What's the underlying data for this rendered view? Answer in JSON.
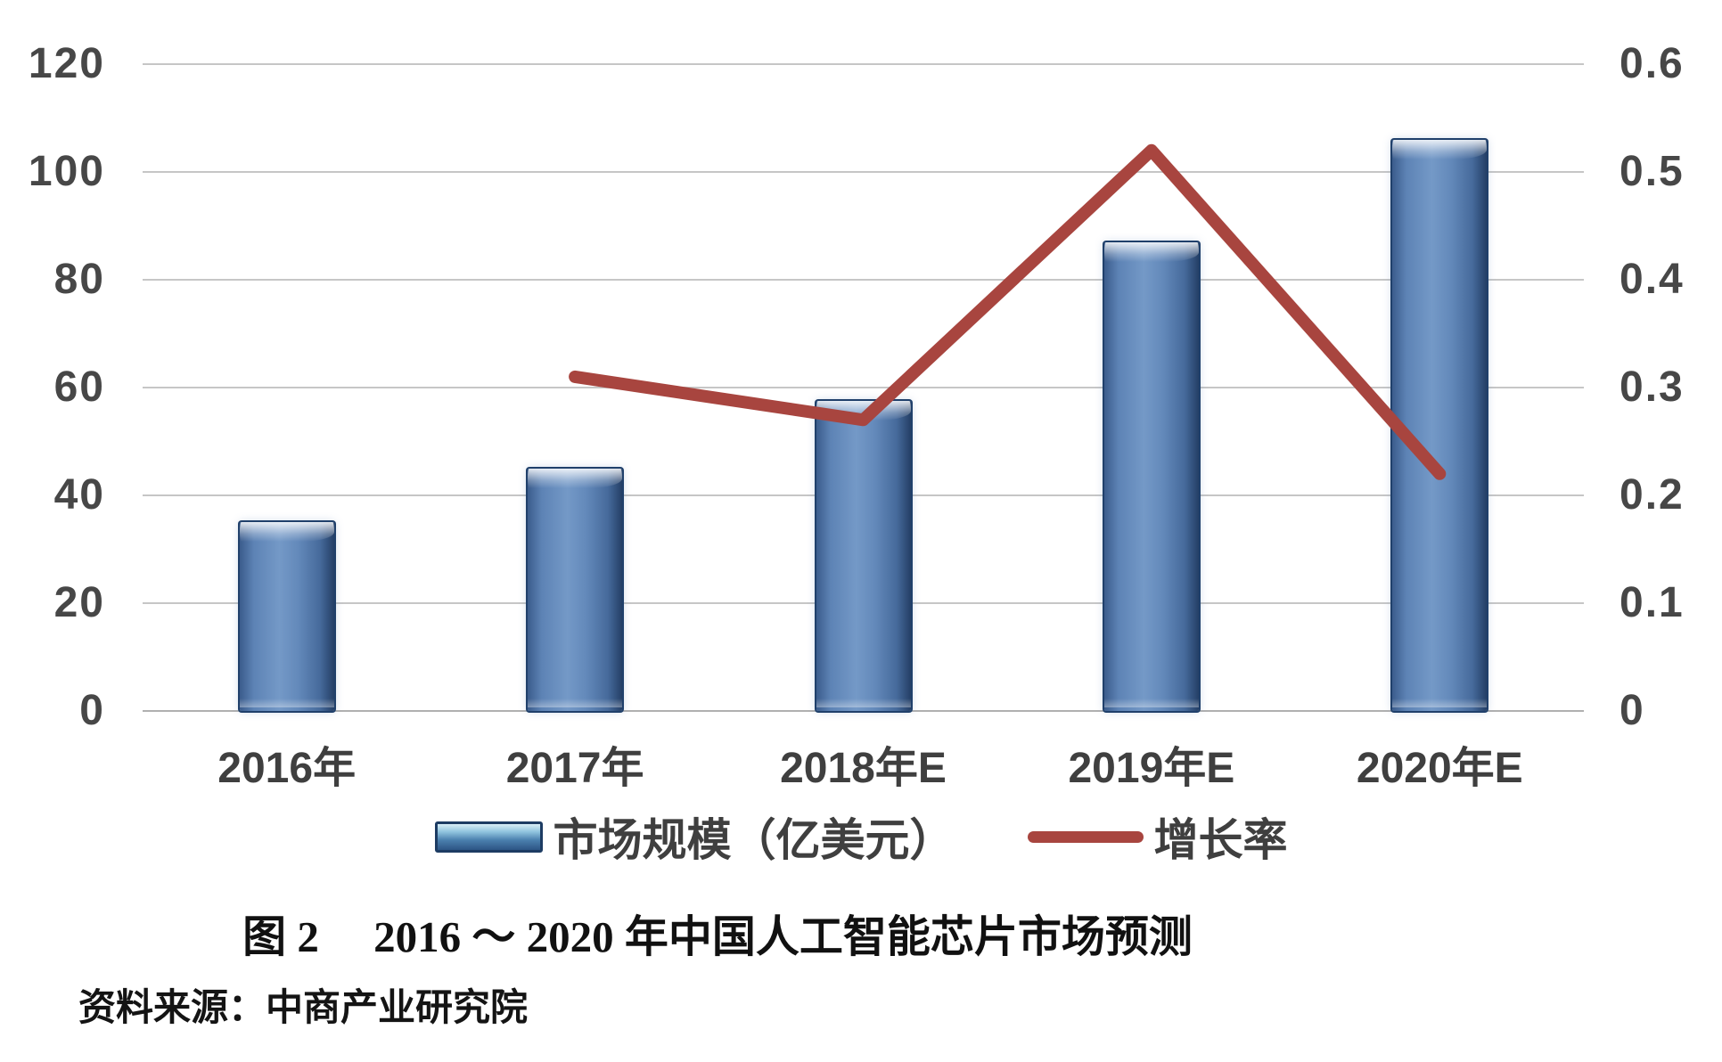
{
  "figure": {
    "caption": "图 2　 2016 ～ 2020 年中国人工智能芯片市场预测",
    "source": "资料来源：中商产业研究院"
  },
  "legend": {
    "items": [
      {
        "label": "市场规模（亿美元）",
        "swatch": "bar"
      },
      {
        "label": "增长率",
        "swatch": "line"
      }
    ]
  },
  "chart_data": {
    "type": "bar",
    "subtype": "bar+line combo, dual axis",
    "title": "",
    "categories": [
      "2016年",
      "2017年",
      "2018年E",
      "2019年E",
      "2020年E"
    ],
    "series": [
      {
        "name": "市场规模（亿美元）",
        "type": "bar",
        "axis": "left",
        "values": [
          35,
          45,
          57.5,
          87,
          106
        ]
      },
      {
        "name": "增长率",
        "type": "line",
        "axis": "right",
        "values": [
          null,
          0.31,
          0.27,
          0.52,
          0.22
        ]
      }
    ],
    "left_axis": {
      "min": 0,
      "max": 120,
      "step": 20,
      "ticks": [
        "0",
        "20",
        "40",
        "60",
        "80",
        "100",
        "120"
      ]
    },
    "right_axis": {
      "min": 0,
      "max": 0.6,
      "step": 0.1,
      "ticks": [
        "0",
        "0.1",
        "0.2",
        "0.3",
        "0.4",
        "0.5",
        "0.6"
      ]
    },
    "grid": true,
    "legend_position": "bottom",
    "colors": {
      "bar": "#5d83b5",
      "bar_edge": "#20406b",
      "line": "#a8453f",
      "gridline": "#c6c6c6",
      "text": "#474747"
    }
  }
}
